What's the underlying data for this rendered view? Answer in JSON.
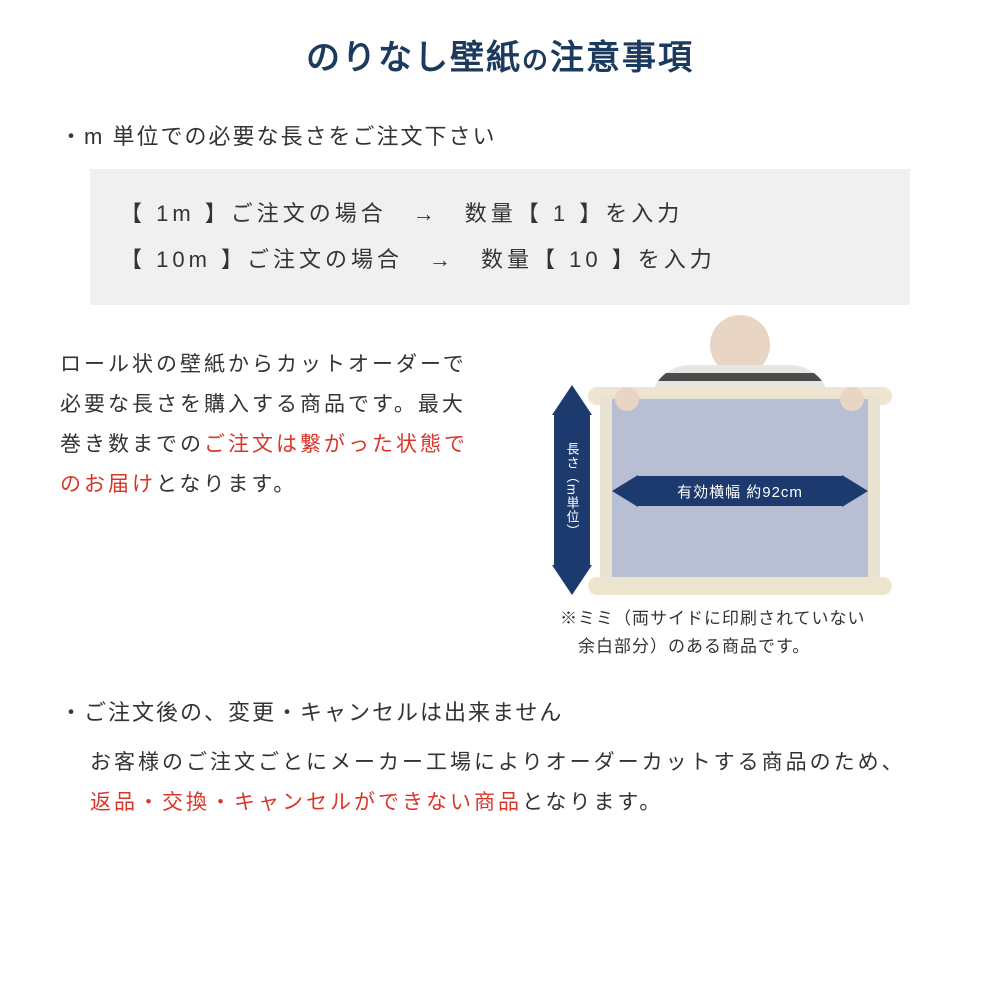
{
  "title": {
    "main": "のりなし壁紙",
    "connector": "の",
    "sub": "注意事項",
    "color": "#1c3a5e"
  },
  "section1": {
    "bullet": "・m 単位での必要な長さをご注文下さい",
    "example_line1": "【 1m 】ご注文の場合　→　数量【 1 】を入力",
    "example_line2": "【 10m 】ご注文の場合　→　数量【 10 】を入力",
    "example_bg": "#f0f0f0"
  },
  "mid": {
    "text_before": "ロール状の壁紙からカットオーダーで必要な長さを購入する商品です。最大巻き数までの",
    "text_red": "ご注文は繋がった状態でのお届け",
    "text_after": "となります。",
    "red_color": "#d9362a"
  },
  "diagram": {
    "v_label": "長さ（m単位）",
    "h_label": "有効横幅 約92cm",
    "arrow_color": "#1c3a6e",
    "wallpaper_color": "#b8bfd4",
    "roll_color": "#ede5d0",
    "note_line1": "※ミミ（両サイドに印刷されていない",
    "note_line2": "　余白部分）のある商品です。"
  },
  "section2": {
    "title": "・ご注文後の、変更・キャンセルは出来ません",
    "body_before": "お客様のご注文ごとにメーカー工場によりオーダーカットする商品のため、",
    "body_red": "返品・交換・キャンセルができない商品",
    "body_after": "となります。"
  }
}
